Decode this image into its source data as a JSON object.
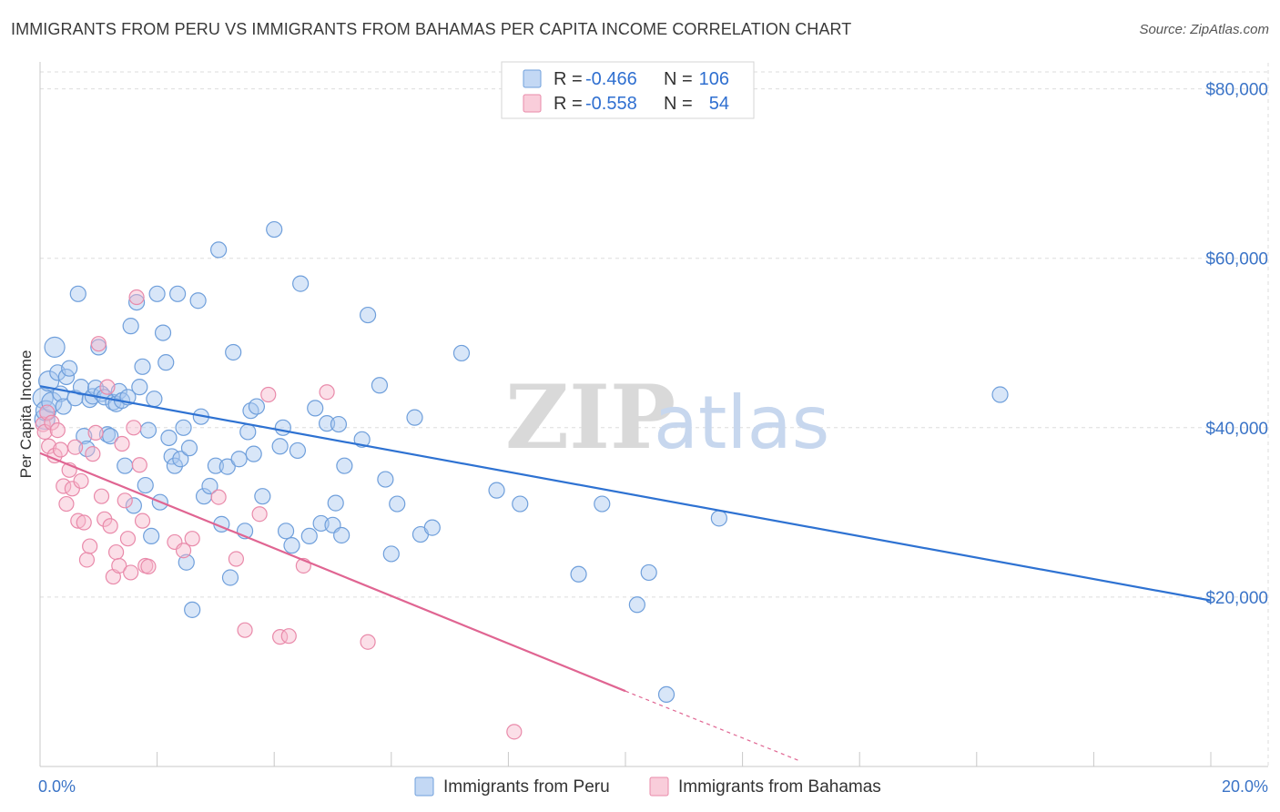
{
  "title": "IMMIGRANTS FROM PERU VS IMMIGRANTS FROM BAHAMAS PER CAPITA INCOME CORRELATION CHART",
  "source": "Source: ZipAtlas.com",
  "watermark": {
    "zip": "ZIP",
    "atlas": "atlas"
  },
  "legend": {
    "rows": [
      {
        "r_label": "R = ",
        "r_value": "-0.466",
        "n_label": "N = ",
        "n_value": "106"
      },
      {
        "r_label": "R = ",
        "r_value": "-0.558",
        "n_label": "N = ",
        "n_value": "54"
      }
    ]
  },
  "colors": {
    "peru_fill": "#a9c8f0",
    "peru_stroke": "#6f9fdb",
    "peru_line": "#2e72d2",
    "bahamas_fill": "#f6b8cb",
    "bahamas_stroke": "#e98aaa",
    "bahamas_line": "#e06592",
    "grid": "#dddddd",
    "axis_text": "#3b74c7"
  },
  "chart_data": {
    "type": "scatter",
    "title": "IMMIGRANTS FROM PERU VS IMMIGRANTS FROM BAHAMAS PER CAPITA INCOME CORRELATION CHART",
    "xlabel": "",
    "ylabel": "Per Capita Income",
    "xlim": [
      0,
      20
    ],
    "ylim": [
      0,
      82000
    ],
    "x_tick_labels": [
      "0.0%",
      "20.0%"
    ],
    "y_ticks": [
      20000,
      40000,
      60000,
      80000
    ],
    "y_tick_labels": [
      "$20,000",
      "$40,000",
      "$60,000",
      "$80,000"
    ],
    "grid": true,
    "legend_position": "top-center",
    "series": [
      {
        "name": "Immigrants from Peru",
        "r": -0.466,
        "n": 106,
        "trend": {
          "x0": 0.0,
          "y0": 44900,
          "x1": 20.0,
          "y1": 19600
        },
        "points": [
          [
            0.05,
            43500
          ],
          [
            0.08,
            41000
          ],
          [
            0.1,
            42000
          ],
          [
            0.15,
            45500
          ],
          [
            0.2,
            43000
          ],
          [
            0.25,
            49500
          ],
          [
            0.3,
            46500
          ],
          [
            0.35,
            44000
          ],
          [
            0.4,
            42500
          ],
          [
            0.45,
            46000
          ],
          [
            0.5,
            47000
          ],
          [
            0.6,
            43500
          ],
          [
            0.65,
            55800
          ],
          [
            0.7,
            44800
          ],
          [
            0.75,
            39000
          ],
          [
            0.8,
            37500
          ],
          [
            0.85,
            43300
          ],
          [
            0.9,
            43700
          ],
          [
            0.95,
            44700
          ],
          [
            1.0,
            49500
          ],
          [
            1.05,
            44000
          ],
          [
            1.1,
            43600
          ],
          [
            1.15,
            39200
          ],
          [
            1.2,
            39000
          ],
          [
            1.25,
            43000
          ],
          [
            1.3,
            42800
          ],
          [
            1.35,
            44300
          ],
          [
            1.4,
            43200
          ],
          [
            1.45,
            35500
          ],
          [
            1.5,
            43600
          ],
          [
            1.55,
            52000
          ],
          [
            1.6,
            30800
          ],
          [
            1.65,
            54800
          ],
          [
            1.7,
            44800
          ],
          [
            1.75,
            47200
          ],
          [
            1.8,
            33200
          ],
          [
            1.85,
            39700
          ],
          [
            1.9,
            27200
          ],
          [
            1.95,
            43400
          ],
          [
            2.0,
            55800
          ],
          [
            2.05,
            31200
          ],
          [
            2.1,
            51200
          ],
          [
            2.15,
            47700
          ],
          [
            2.2,
            38800
          ],
          [
            2.25,
            36600
          ],
          [
            2.3,
            35500
          ],
          [
            2.35,
            55800
          ],
          [
            2.4,
            36300
          ],
          [
            2.45,
            40000
          ],
          [
            2.5,
            24100
          ],
          [
            2.55,
            37600
          ],
          [
            2.6,
            18500
          ],
          [
            2.7,
            55000
          ],
          [
            2.75,
            41300
          ],
          [
            2.8,
            31900
          ],
          [
            2.9,
            33100
          ],
          [
            3.0,
            35500
          ],
          [
            3.05,
            61000
          ],
          [
            3.1,
            28600
          ],
          [
            3.2,
            35400
          ],
          [
            3.25,
            22300
          ],
          [
            3.3,
            48900
          ],
          [
            3.4,
            36300
          ],
          [
            3.5,
            27800
          ],
          [
            3.55,
            39500
          ],
          [
            3.6,
            42000
          ],
          [
            3.65,
            36900
          ],
          [
            3.7,
            42500
          ],
          [
            3.8,
            31900
          ],
          [
            4.0,
            63400
          ],
          [
            4.1,
            37800
          ],
          [
            4.15,
            40000
          ],
          [
            4.2,
            27800
          ],
          [
            4.3,
            26100
          ],
          [
            4.4,
            37300
          ],
          [
            4.45,
            57000
          ],
          [
            4.6,
            27200
          ],
          [
            4.7,
            42300
          ],
          [
            4.8,
            28700
          ],
          [
            4.9,
            40500
          ],
          [
            5.0,
            28500
          ],
          [
            5.05,
            31100
          ],
          [
            5.1,
            40400
          ],
          [
            5.15,
            27300
          ],
          [
            5.2,
            35500
          ],
          [
            5.5,
            38600
          ],
          [
            5.6,
            53300
          ],
          [
            5.8,
            45000
          ],
          [
            5.9,
            33900
          ],
          [
            6.0,
            25100
          ],
          [
            6.1,
            31000
          ],
          [
            6.4,
            41200
          ],
          [
            6.5,
            27400
          ],
          [
            6.7,
            28200
          ],
          [
            7.2,
            48800
          ],
          [
            7.8,
            32600
          ],
          [
            8.2,
            31000
          ],
          [
            9.2,
            22700
          ],
          [
            9.6,
            31000
          ],
          [
            10.2,
            19100
          ],
          [
            10.4,
            22900
          ],
          [
            10.7,
            8500
          ],
          [
            11.6,
            29300
          ],
          [
            16.4,
            43900
          ]
        ]
      },
      {
        "name": "Immigrants from Bahamas",
        "r": -0.558,
        "n": 54,
        "trend": {
          "x0": 0.0,
          "y0": 37000,
          "x1": 10.0,
          "y1": 8900,
          "dash_to_x": 13.0,
          "dash_to_y": 600
        },
        "points": [
          [
            0.05,
            40400
          ],
          [
            0.08,
            39500
          ],
          [
            0.12,
            41800
          ],
          [
            0.15,
            37800
          ],
          [
            0.2,
            40600
          ],
          [
            0.25,
            36700
          ],
          [
            0.3,
            39700
          ],
          [
            0.35,
            37400
          ],
          [
            0.4,
            33100
          ],
          [
            0.45,
            31000
          ],
          [
            0.5,
            35000
          ],
          [
            0.55,
            32800
          ],
          [
            0.6,
            37700
          ],
          [
            0.65,
            29000
          ],
          [
            0.7,
            33700
          ],
          [
            0.75,
            28800
          ],
          [
            0.8,
            24400
          ],
          [
            0.85,
            26000
          ],
          [
            0.9,
            36900
          ],
          [
            0.95,
            39400
          ],
          [
            1.0,
            49900
          ],
          [
            1.05,
            31900
          ],
          [
            1.1,
            29200
          ],
          [
            1.15,
            44800
          ],
          [
            1.2,
            28400
          ],
          [
            1.25,
            22400
          ],
          [
            1.3,
            25300
          ],
          [
            1.35,
            23700
          ],
          [
            1.4,
            38100
          ],
          [
            1.45,
            31400
          ],
          [
            1.5,
            26900
          ],
          [
            1.55,
            22900
          ],
          [
            1.6,
            40000
          ],
          [
            1.65,
            55400
          ],
          [
            1.7,
            35600
          ],
          [
            1.75,
            29000
          ],
          [
            1.8,
            23700
          ],
          [
            1.85,
            23600
          ],
          [
            2.3,
            26500
          ],
          [
            2.45,
            25500
          ],
          [
            2.6,
            26900
          ],
          [
            3.05,
            31800
          ],
          [
            3.35,
            24500
          ],
          [
            3.5,
            16100
          ],
          [
            3.75,
            29800
          ],
          [
            3.9,
            43900
          ],
          [
            4.1,
            15300
          ],
          [
            4.25,
            15400
          ],
          [
            4.5,
            23700
          ],
          [
            4.9,
            44200
          ],
          [
            5.6,
            14700
          ],
          [
            8.1,
            4100
          ]
        ]
      }
    ]
  },
  "bottom_legend": [
    {
      "label": "Immigrants from Peru"
    },
    {
      "label": "Immigrants from Bahamas"
    }
  ]
}
